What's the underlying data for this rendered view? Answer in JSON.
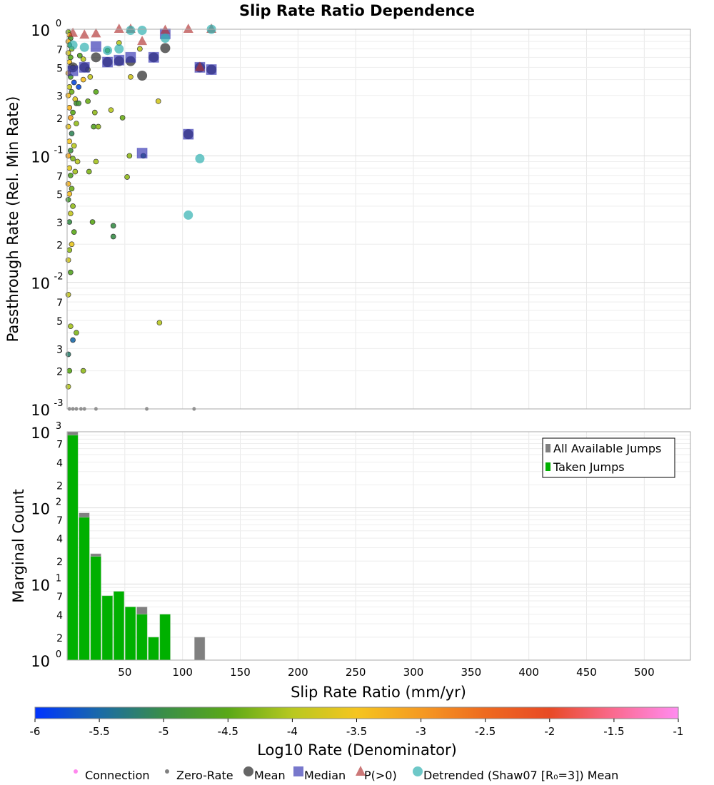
{
  "chart_data": {
    "type": "scatter",
    "title": "Slip Rate Ratio Dependence",
    "xlabel": "Slip Rate Ratio (mm/yr)",
    "xlim": [
      0,
      540
    ],
    "xticks": [
      50,
      100,
      150,
      200,
      250,
      300,
      350,
      400,
      450,
      500
    ],
    "top": {
      "ylabel": "Passthrough Rate (Rel. Min Rate)",
      "yscale": "log",
      "ylim": [
        0.001,
        1
      ],
      "decade_labels": [
        {
          "base": "10",
          "exp": "0",
          "v": 1
        },
        {
          "base": "10",
          "exp": "-1",
          "v": 0.1
        },
        {
          "base": "10",
          "exp": "-2",
          "v": 0.01
        },
        {
          "base": "10",
          "exp": "-3",
          "v": 0.001
        }
      ],
      "minor_labels": [
        "7",
        "5",
        "3",
        "2"
      ],
      "points": [
        [
          1,
          0.95,
          -4.3
        ],
        [
          2,
          0.9,
          -3.6
        ],
        [
          3,
          0.85,
          -4.8
        ],
        [
          1,
          0.8,
          -3.3
        ],
        [
          2,
          0.75,
          -5
        ],
        [
          4,
          0.7,
          -4.2
        ],
        [
          1,
          0.65,
          -3.8
        ],
        [
          3,
          0.6,
          -4.5
        ],
        [
          2,
          0.55,
          -3.5
        ],
        [
          5,
          0.5,
          -4.1
        ],
        [
          1,
          0.45,
          -3.2
        ],
        [
          3,
          0.42,
          -4.6
        ],
        [
          6,
          0.38,
          -5.8
        ],
        [
          2,
          0.35,
          -3.9
        ],
        [
          4,
          0.32,
          -4.4
        ],
        [
          1,
          0.3,
          -3.4
        ],
        [
          7,
          0.28,
          -3.7
        ],
        [
          8,
          0.26,
          -4.8
        ],
        [
          2,
          0.24,
          -3.3
        ],
        [
          5,
          0.22,
          -4.5
        ],
        [
          3,
          0.2,
          -3.1
        ],
        [
          8,
          0.18,
          -4.2
        ],
        [
          1,
          0.17,
          -3.6
        ],
        [
          4,
          0.15,
          -5.1
        ],
        [
          2,
          0.13,
          -3.5
        ],
        [
          6,
          0.12,
          -4
        ],
        [
          3,
          0.11,
          -4.9
        ],
        [
          1,
          0.1,
          -3.2
        ],
        [
          5,
          0.095,
          -4.3
        ],
        [
          9,
          0.09,
          -4
        ],
        [
          2,
          0.08,
          -3.7
        ],
        [
          7,
          0.075,
          -4.1
        ],
        [
          3,
          0.07,
          -4.6
        ],
        [
          1,
          0.06,
          -3.3
        ],
        [
          4,
          0.055,
          -4.4
        ],
        [
          2,
          0.05,
          -3.4
        ],
        [
          1,
          0.045,
          -4.8
        ],
        [
          5,
          0.04,
          -4.2
        ],
        [
          3,
          0.035,
          -3.9
        ],
        [
          2,
          0.03,
          -5
        ],
        [
          6,
          0.025,
          -4.5
        ],
        [
          4,
          0.02,
          -3.6
        ],
        [
          2,
          0.018,
          -4.2
        ],
        [
          1,
          0.015,
          -3.8
        ],
        [
          3,
          0.012,
          -4.6
        ],
        [
          1,
          0.008,
          -3.9
        ],
        [
          3,
          0.0045,
          -4.1
        ],
        [
          5,
          0.0035,
          -5.5
        ],
        [
          8,
          0.004,
          -4.3
        ],
        [
          1,
          0.0027,
          -5.2
        ],
        [
          2,
          0.002,
          -4.5
        ],
        [
          14,
          0.002,
          -4.2
        ],
        [
          1,
          0.0015,
          -4
        ],
        [
          11,
          0.62,
          -4.6
        ],
        [
          14,
          0.58,
          -4
        ],
        [
          18,
          0.48,
          -4
        ],
        [
          20,
          0.42,
          -3.9
        ],
        [
          25,
          0.32,
          -4.5
        ],
        [
          18,
          0.27,
          -4.4
        ],
        [
          23,
          0.17,
          -4.6
        ],
        [
          27,
          0.17,
          -4.2
        ],
        [
          24,
          0.22,
          -4.2
        ],
        [
          38,
          0.23,
          -4
        ],
        [
          48,
          0.2,
          -4.4
        ],
        [
          55,
          0.42,
          -3.8
        ],
        [
          54,
          0.1,
          -4.2
        ],
        [
          19,
          0.075,
          -4.3
        ],
        [
          25,
          0.09,
          -4.1
        ],
        [
          52,
          0.068,
          -4.2
        ],
        [
          22,
          0.03,
          -4.5
        ],
        [
          40,
          0.028,
          -5
        ],
        [
          40,
          0.023,
          -5
        ],
        [
          80,
          0.0048,
          -4
        ],
        [
          79,
          0.27,
          -3.8
        ],
        [
          45,
          0.78,
          -4
        ],
        [
          35,
          0.68,
          -4.5
        ],
        [
          63,
          0.7,
          -4
        ],
        [
          66,
          0.1,
          -5.2
        ],
        [
          10,
          0.35,
          -5.8
        ],
        [
          14,
          0.4,
          -3.4
        ],
        [
          10,
          0.26,
          -4.8
        ]
      ],
      "zero_rate_x": [
        2,
        5,
        8,
        12,
        15,
        25,
        69,
        110
      ],
      "mean": [
        [
          5,
          0.5
        ],
        [
          15,
          0.5
        ],
        [
          25,
          0.6
        ],
        [
          35,
          0.55
        ],
        [
          45,
          0.56
        ],
        [
          55,
          0.56
        ],
        [
          65,
          0.43
        ],
        [
          75,
          0.6
        ],
        [
          85,
          0.71
        ],
        [
          105,
          0.148
        ],
        [
          115,
          0.5
        ],
        [
          125,
          0.48
        ]
      ],
      "median": [
        [
          5,
          0.47
        ],
        [
          15,
          0.5
        ],
        [
          25,
          0.73
        ],
        [
          35,
          0.55
        ],
        [
          45,
          0.57
        ],
        [
          55,
          0.6
        ],
        [
          65,
          0.105
        ],
        [
          75,
          0.6
        ],
        [
          85,
          0.92
        ],
        [
          105,
          0.148
        ],
        [
          115,
          0.5
        ],
        [
          125,
          0.48
        ]
      ],
      "p_gt0": [
        [
          5,
          0.93
        ],
        [
          15,
          0.9
        ],
        [
          25,
          0.92
        ],
        [
          45,
          1
        ],
        [
          55,
          1
        ],
        [
          65,
          0.8
        ],
        [
          85,
          0.98
        ],
        [
          105,
          1
        ],
        [
          115,
          0.5
        ],
        [
          125,
          1
        ]
      ],
      "detrended": [
        [
          5,
          0.75
        ],
        [
          15,
          0.72
        ],
        [
          35,
          0.68
        ],
        [
          45,
          0.7
        ],
        [
          55,
          0.98
        ],
        [
          65,
          0.98
        ],
        [
          85,
          0.85
        ],
        [
          105,
          0.034
        ],
        [
          115,
          0.095
        ],
        [
          125,
          1
        ]
      ]
    },
    "bottom": {
      "type": "bar",
      "ylabel": "Marginal Count",
      "yscale": "log",
      "ylim": [
        1,
        1000
      ],
      "decade_labels": [
        {
          "base": "10",
          "exp": "3",
          "v": 1000
        },
        {
          "base": "10",
          "exp": "2",
          "v": 100
        },
        {
          "base": "10",
          "exp": "1",
          "v": 10
        },
        {
          "base": "10",
          "exp": "0",
          "v": 1
        }
      ],
      "minor_labels": [
        "7",
        "4",
        "2"
      ],
      "bin_width": 10,
      "bin_starts": [
        0,
        10,
        20,
        30,
        40,
        50,
        60,
        70,
        80,
        90,
        100,
        110
      ],
      "series": [
        {
          "name": "All Available Jumps",
          "color": "#808080",
          "values": [
            1000,
            86,
            25,
            7,
            8,
            5,
            5,
            2,
            4,
            0,
            0,
            2
          ]
        },
        {
          "name": "Taken Jumps",
          "color": "#00b000",
          "values": [
            900,
            75,
            23,
            7,
            8,
            5,
            4,
            2,
            4,
            0,
            0,
            0
          ]
        }
      ],
      "legend_position": "top-right"
    },
    "colorbar": {
      "label": "Log10 Rate (Denominator)",
      "range": [
        -6,
        -1
      ],
      "ticks": [
        "-6",
        "-5.5",
        "-5",
        "-4.5",
        "-4",
        "-3.5",
        "-3",
        "-2.5",
        "-2",
        "-1.5",
        "-1"
      ],
      "stops": [
        "#0033ff",
        "#1a6aa8",
        "#3a8e48",
        "#5aa818",
        "#b8c820",
        "#f5c520",
        "#f59a22",
        "#ee6a20",
        "#e84a25",
        "#fa6a90",
        "#ff8cf0"
      ]
    },
    "legend": [
      "Connection",
      "Zero-Rate",
      "Mean",
      "Median",
      "P(>0)",
      "Detrended (Shaw07 [R₀=3]) Mean"
    ]
  }
}
